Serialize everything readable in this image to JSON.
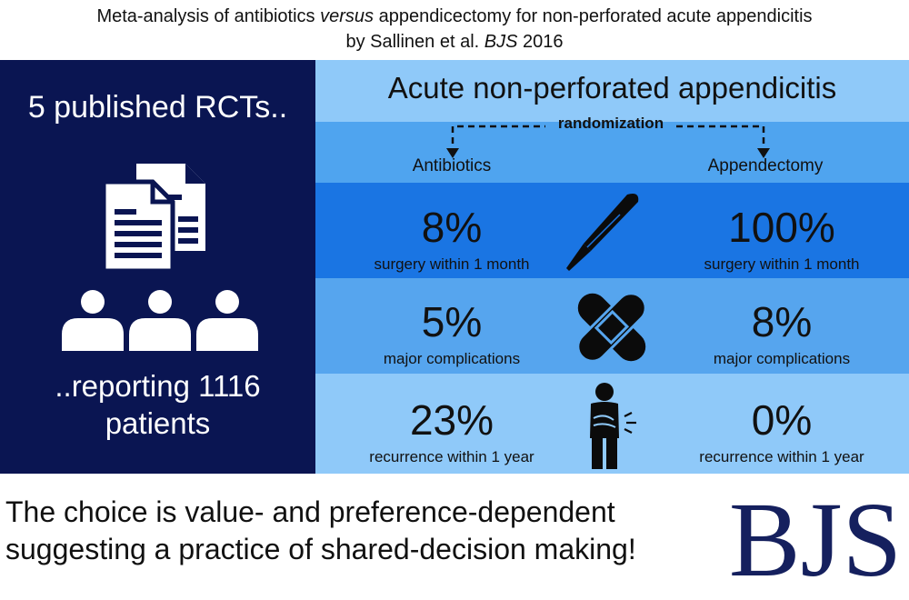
{
  "header": {
    "line1_pre": "Meta-analysis of antibiotics ",
    "line1_em": "versus",
    "line1_post": " appendicectomy for non-perforated acute appendicitis",
    "line2_pre": "by Sallinen et al. ",
    "line2_em": "BJS",
    "line2_post": " 2016"
  },
  "left_panel": {
    "title": "5 published RCTs..",
    "subtitle_line1": "..reporting 1116",
    "subtitle_line2": "patients",
    "icons": [
      "documents-icon",
      "people-icon"
    ],
    "background": "#0a1552"
  },
  "flow": {
    "title": "Acute non-perforated appendicitis",
    "randomization_label": "randomization",
    "arms": [
      "Antibiotics",
      "Appendectomy"
    ]
  },
  "outcomes": [
    {
      "icon": "scalpel-icon",
      "antibiotics": "8%",
      "appendectomy": "100%",
      "caption": "surgery within 1 month",
      "color": "#1a75e3"
    },
    {
      "icon": "bandage-icon",
      "antibiotics": "5%",
      "appendectomy": "8%",
      "caption": "major complications",
      "color": "#56a5ee"
    },
    {
      "icon": "abdominal-pain-icon",
      "antibiotics": "23%",
      "appendectomy": "0%",
      "caption": "recurrence within 1 year",
      "color": "#8fc9f9"
    }
  ],
  "footer": {
    "line1": "The choice is value- and preference-dependent",
    "line2": "suggesting a practice of shared-decision making!",
    "logo": "BJS",
    "logo_color": "#15205e"
  }
}
